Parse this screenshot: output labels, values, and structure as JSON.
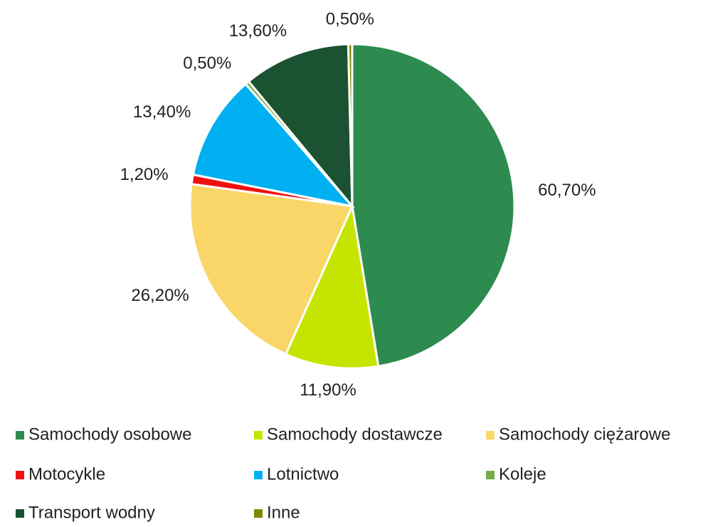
{
  "chart_data": {
    "type": "pie",
    "categories": [
      "Samochody osobowe",
      "Samochody dostawcze",
      "Samochody ciężarowe",
      "Motocykle",
      "Lotnictwo",
      "Koleje",
      "Transport wodny",
      "Inne"
    ],
    "values": [
      60.7,
      11.9,
      26.2,
      1.2,
      13.4,
      0.5,
      13.6,
      0.5
    ],
    "value_labels": [
      "60,70%",
      "11,90%",
      "26,20%",
      "1,20%",
      "13,40%",
      "0,50%",
      "13,60%",
      "0,50%"
    ],
    "colors": [
      "#2e8b50",
      "#c5e500",
      "#f9d667",
      "#ee1111",
      "#00b0f0",
      "#70ad47",
      "#1b5232",
      "#7f8a00"
    ],
    "legend": "bottom"
  }
}
